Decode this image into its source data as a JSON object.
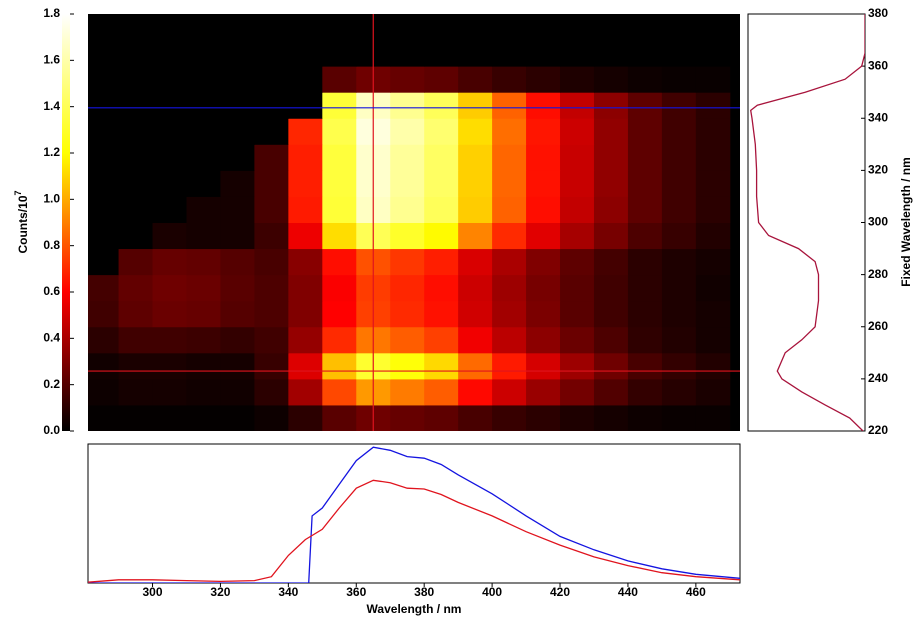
{
  "chart_data": [
    {
      "type": "heatmap",
      "x": [
        285,
        295,
        305,
        315,
        325,
        335,
        345,
        355,
        365,
        375,
        385,
        395,
        405,
        415,
        425,
        435,
        445,
        455,
        465
      ],
      "y": [
        225,
        235,
        245,
        255,
        265,
        275,
        285,
        295,
        305,
        315,
        325,
        335,
        345,
        355,
        365,
        375
      ],
      "values": [
        [
          0.01,
          0.01,
          0.01,
          0.01,
          0.01,
          0.03,
          0.1,
          0.21,
          0.26,
          0.24,
          0.22,
          0.17,
          0.13,
          0.1,
          0.07,
          0.05,
          0.03,
          0.02,
          0.02
        ],
        [
          0.03,
          0.05,
          0.05,
          0.04,
          0.04,
          0.1,
          0.38,
          0.77,
          0.96,
          0.89,
          0.82,
          0.62,
          0.48,
          0.36,
          0.27,
          0.19,
          0.12,
          0.09,
          0.06
        ],
        [
          0.04,
          0.06,
          0.06,
          0.05,
          0.05,
          0.13,
          0.52,
          1.05,
          1.31,
          1.22,
          1.11,
          0.85,
          0.66,
          0.5,
          0.37,
          0.26,
          0.17,
          0.12,
          0.08
        ],
        [
          0.1,
          0.15,
          0.15,
          0.14,
          0.12,
          0.15,
          0.35,
          0.7,
          0.88,
          0.82,
          0.75,
          0.57,
          0.44,
          0.33,
          0.25,
          0.18,
          0.11,
          0.08,
          0.05
        ],
        [
          0.15,
          0.22,
          0.25,
          0.24,
          0.2,
          0.18,
          0.3,
          0.6,
          0.75,
          0.7,
          0.64,
          0.49,
          0.38,
          0.29,
          0.21,
          0.15,
          0.1,
          0.07,
          0.05
        ],
        [
          0.16,
          0.23,
          0.26,
          0.25,
          0.21,
          0.18,
          0.3,
          0.59,
          0.74,
          0.69,
          0.63,
          0.48,
          0.37,
          0.28,
          0.21,
          0.15,
          0.1,
          0.07,
          0.04
        ],
        [
          0,
          0.2,
          0.24,
          0.23,
          0.2,
          0.17,
          0.32,
          0.63,
          0.79,
          0.73,
          0.67,
          0.51,
          0.4,
          0.3,
          0.22,
          0.16,
          0.1,
          0.07,
          0.05
        ],
        [
          0,
          0,
          0.06,
          0.05,
          0.05,
          0.14,
          0.56,
          1.12,
          1.4,
          1.3,
          1.19,
          0.91,
          0.7,
          0.53,
          0.39,
          0.28,
          0.18,
          0.13,
          0.08
        ],
        [
          0,
          0,
          0,
          0.05,
          0.05,
          0.17,
          0.66,
          1.33,
          1.66,
          1.54,
          1.41,
          1.08,
          0.83,
          0.63,
          0.46,
          0.33,
          0.22,
          0.15,
          0.1
        ],
        [
          0,
          0,
          0,
          0,
          0.05,
          0.17,
          0.67,
          1.34,
          1.68,
          1.56,
          1.43,
          1.09,
          0.84,
          0.64,
          0.47,
          0.34,
          0.22,
          0.15,
          0.1
        ],
        [
          0,
          0,
          0,
          0,
          0,
          0.17,
          0.67,
          1.34,
          1.68,
          1.56,
          1.43,
          1.09,
          0.84,
          0.64,
          0.47,
          0.34,
          0.22,
          0.15,
          0.1
        ],
        [
          0,
          0,
          0,
          0,
          0,
          0,
          0.69,
          1.38,
          1.72,
          1.6,
          1.46,
          1.12,
          0.86,
          0.65,
          0.48,
          0.34,
          0.22,
          0.15,
          0.1
        ],
        [
          0,
          0,
          0,
          0,
          0,
          0,
          0,
          1.33,
          1.66,
          1.54,
          1.41,
          1.08,
          0.83,
          0.63,
          0.46,
          0.33,
          0.22,
          0.15,
          0.1
        ],
        [
          0,
          0,
          0,
          0,
          0,
          0,
          0,
          0.21,
          0.26,
          0.24,
          0.22,
          0.17,
          0.13,
          0.1,
          0.07,
          0.05,
          0.03,
          0.02,
          0.02
        ],
        [
          0,
          0,
          0,
          0,
          0,
          0,
          0,
          0,
          0,
          0,
          0,
          0,
          0,
          0,
          0,
          0,
          0,
          0,
          0
        ],
        [
          0,
          0,
          0,
          0,
          0,
          0,
          0,
          0,
          0,
          0,
          0,
          0,
          0,
          0,
          0,
          0,
          0,
          0,
          0
        ]
      ],
      "xlim": [
        281,
        473
      ],
      "ylim": [
        220,
        380
      ],
      "colorscale": [
        "#000000",
        "#ff0000",
        "#ffff00",
        "#ffffff"
      ],
      "zlim": [
        0,
        1.8
      ],
      "zticks": [
        {
          "value": 0,
          "label": "0.0"
        },
        0.2,
        0.4,
        0.6,
        0.8,
        {
          "value": 1,
          "label": "1.0"
        },
        1.2,
        1.4,
        1.6,
        1.8
      ],
      "z_label": "Counts/10",
      "z_label_sup": "7",
      "crosshairs": [
        {
          "axis": "x",
          "value": 365,
          "color": "#e0141e"
        },
        {
          "axis": "y",
          "value": 243,
          "color": "#e0141e"
        },
        {
          "axis": "y",
          "value": 344,
          "color": "#1414e0"
        }
      ]
    },
    {
      "type": "line",
      "y": [
        220,
        225,
        230,
        235,
        240,
        243,
        250,
        255,
        260,
        270,
        280,
        285,
        290,
        295,
        300,
        310,
        320,
        330,
        340,
        343,
        345,
        350,
        355,
        360,
        365,
        380
      ],
      "values": [
        0.03,
        0.23,
        0.6,
        0.95,
        1.25,
        1.32,
        1.2,
        0.95,
        0.75,
        0.7,
        0.7,
        0.75,
        1.0,
        1.45,
        1.6,
        1.63,
        1.63,
        1.65,
        1.7,
        1.72,
        1.62,
        0.9,
        0.3,
        0.05,
        0,
        0
      ],
      "color": "#a8143c",
      "xlim": [
        1.76,
        0
      ],
      "ylim": [
        220,
        380
      ],
      "yticks": [
        220,
        240,
        260,
        280,
        300,
        320,
        340,
        360,
        380
      ],
      "y_label": "Fixed Wavelength / nm"
    },
    {
      "type": "line",
      "series": [
        {
          "color": "#1414e0",
          "x": [
            281,
            300,
            320,
            340,
            346,
            347,
            350,
            355,
            360,
            365,
            370,
            375,
            380,
            385,
            390,
            400,
            410,
            420,
            430,
            440,
            450,
            460,
            473
          ],
          "values": [
            0,
            0,
            0,
            0,
            0,
            0.85,
            0.95,
            1.25,
            1.55,
            1.72,
            1.68,
            1.6,
            1.58,
            1.5,
            1.37,
            1.13,
            0.85,
            0.59,
            0.42,
            0.28,
            0.18,
            0.11,
            0.06
          ]
        },
        {
          "color": "#e0141e",
          "x": [
            281,
            290,
            300,
            310,
            320,
            330,
            335,
            340,
            345,
            350,
            355,
            360,
            365,
            370,
            375,
            380,
            385,
            390,
            400,
            410,
            420,
            430,
            440,
            450,
            460,
            473
          ],
          "values": [
            0.01,
            0.04,
            0.04,
            0.03,
            0.02,
            0.03,
            0.08,
            0.35,
            0.55,
            0.68,
            0.95,
            1.2,
            1.3,
            1.27,
            1.2,
            1.19,
            1.12,
            1.02,
            0.85,
            0.65,
            0.48,
            0.33,
            0.22,
            0.13,
            0.08,
            0.04
          ]
        }
      ],
      "xlim": [
        281,
        473
      ],
      "ylim": [
        0,
        1.76
      ],
      "xticks": [
        300,
        320,
        340,
        360,
        380,
        400,
        420,
        440,
        460
      ],
      "x_label": "Wavelength / nm"
    }
  ]
}
